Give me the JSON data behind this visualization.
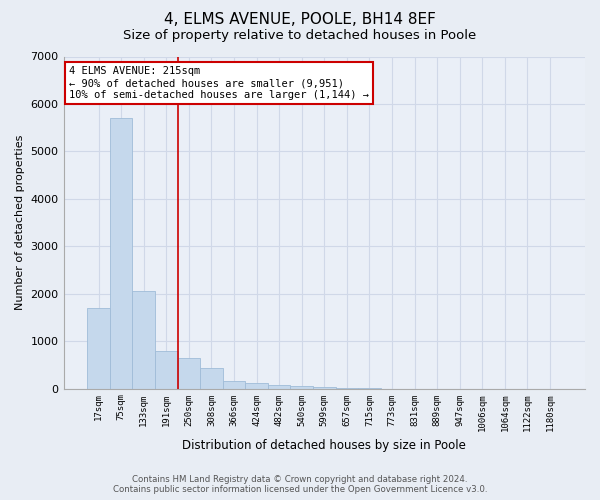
{
  "title": "4, ELMS AVENUE, POOLE, BH14 8EF",
  "subtitle": "Size of property relative to detached houses in Poole",
  "xlabel": "Distribution of detached houses by size in Poole",
  "ylabel": "Number of detached properties",
  "categories": [
    "17sqm",
    "75sqm",
    "133sqm",
    "191sqm",
    "250sqm",
    "308sqm",
    "366sqm",
    "424sqm",
    "482sqm",
    "540sqm",
    "599sqm",
    "657sqm",
    "715sqm",
    "773sqm",
    "831sqm",
    "889sqm",
    "947sqm",
    "1006sqm",
    "1064sqm",
    "1122sqm",
    "1180sqm"
  ],
  "values": [
    1700,
    5700,
    2050,
    800,
    650,
    430,
    170,
    110,
    70,
    50,
    30,
    10,
    5,
    3,
    2,
    1,
    1,
    0,
    0,
    0,
    0
  ],
  "bar_color": "#c5d8ec",
  "bar_edge_color": "#a0bcd8",
  "vline_x_index": 3,
  "vline_color": "#cc0000",
  "annotation_line1": "4 ELMS AVENUE: 215sqm",
  "annotation_line2": "← 90% of detached houses are smaller (9,951)",
  "annotation_line3": "10% of semi-detached houses are larger (1,144) →",
  "annotation_box_color": "#cc0000",
  "footer_line1": "Contains HM Land Registry data © Crown copyright and database right 2024.",
  "footer_line2": "Contains public sector information licensed under the Open Government Licence v3.0.",
  "ylim": [
    0,
    7000
  ],
  "yticks": [
    0,
    1000,
    2000,
    3000,
    4000,
    5000,
    6000,
    7000
  ],
  "bg_color": "#e8edf4",
  "plot_bg_color": "#eaeff7",
  "grid_color": "#d0d8e8",
  "title_fontsize": 11,
  "subtitle_fontsize": 9.5,
  "xlabel_fontsize": 8.5,
  "ylabel_fontsize": 8
}
